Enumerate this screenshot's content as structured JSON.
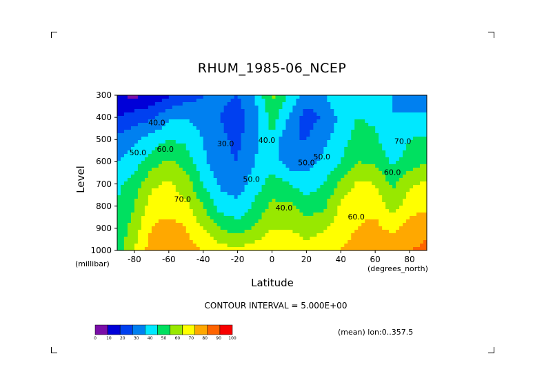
{
  "title": "RHUM_1985-06_NCEP",
  "chart_data": {
    "type": "heatmap",
    "title": "RHUM_1985-06_NCEP",
    "xlabel": "Latitude",
    "ylabel": "Level",
    "x_units": "(degrees_north)",
    "y_units": "(millibar)",
    "x_ticks": [
      -80,
      -60,
      -40,
      -20,
      0,
      20,
      40,
      60,
      80
    ],
    "x_tick_labels": [
      "-80",
      "-60",
      "-40",
      "-20",
      "0",
      "20",
      "40",
      "60",
      "80"
    ],
    "y_ticks": [
      300,
      400,
      500,
      600,
      700,
      800,
      900,
      1000
    ],
    "y_tick_labels": [
      "300",
      "400",
      "500",
      "600",
      "700",
      "800",
      "900",
      "1000"
    ],
    "xlim": [
      -90,
      90
    ],
    "ylim": [
      1000,
      300
    ],
    "contour_interval_text": "CONTOUR INTERVAL = 5.000E+00",
    "contour_labels": [
      "40.0",
      "50.0",
      "60.0",
      "30.0",
      "40.0",
      "50.0",
      "40.0",
      "50.0",
      "50.0",
      "60.0",
      "70.0",
      "60.0",
      "70.0"
    ],
    "colorbar": {
      "levels": [
        0,
        10,
        20,
        30,
        40,
        50,
        60,
        70,
        80,
        90,
        100
      ],
      "level_labels": [
        "0",
        "10",
        "20",
        "30",
        "40",
        "50",
        "60",
        "70",
        "80",
        "90",
        "100"
      ],
      "colors": [
        "#7a0ea8",
        "#0000d8",
        "#0040f0",
        "#0080f0",
        "#00e8ff",
        "#00e060",
        "#98e800",
        "#ffff00",
        "#ffa800",
        "#ff6400",
        "#f80000"
      ]
    },
    "x": [
      -90,
      -80,
      -70,
      -60,
      -50,
      -40,
      -30,
      -20,
      -10,
      0,
      10,
      20,
      30,
      40,
      50,
      60,
      70,
      80,
      90
    ],
    "levels": [
      300,
      400,
      500,
      600,
      700,
      800,
      900,
      1000
    ],
    "values": [
      [
        10,
        8,
        12,
        18,
        25,
        30,
        32,
        30,
        40,
        62,
        48,
        35,
        38,
        50,
        50,
        45,
        40,
        35,
        32
      ],
      [
        20,
        25,
        28,
        38,
        40,
        35,
        30,
        25,
        35,
        55,
        40,
        25,
        32,
        42,
        50,
        48,
        40,
        42,
        42
      ],
      [
        32,
        38,
        45,
        50,
        48,
        40,
        32,
        28,
        38,
        48,
        30,
        30,
        38,
        45,
        55,
        52,
        42,
        50,
        52
      ],
      [
        40,
        45,
        55,
        62,
        55,
        42,
        32,
        30,
        40,
        45,
        35,
        35,
        42,
        50,
        60,
        58,
        48,
        55,
        60
      ],
      [
        48,
        55,
        68,
        72,
        65,
        50,
        38,
        35,
        45,
        55,
        50,
        45,
        50,
        62,
        72,
        70,
        58,
        68,
        72
      ],
      [
        50,
        60,
        75,
        75,
        72,
        60,
        45,
        42,
        52,
        62,
        62,
        55,
        58,
        72,
        78,
        78,
        65,
        75,
        78
      ],
      [
        52,
        65,
        80,
        85,
        80,
        70,
        60,
        55,
        62,
        70,
        70,
        65,
        68,
        75,
        80,
        82,
        78,
        85,
        88
      ],
      [
        55,
        70,
        85,
        88,
        85,
        80,
        75,
        72,
        75,
        80,
        78,
        75,
        78,
        80,
        85,
        88,
        85,
        90,
        92
      ]
    ]
  },
  "mean_label": "(mean) lon:0..357.5"
}
